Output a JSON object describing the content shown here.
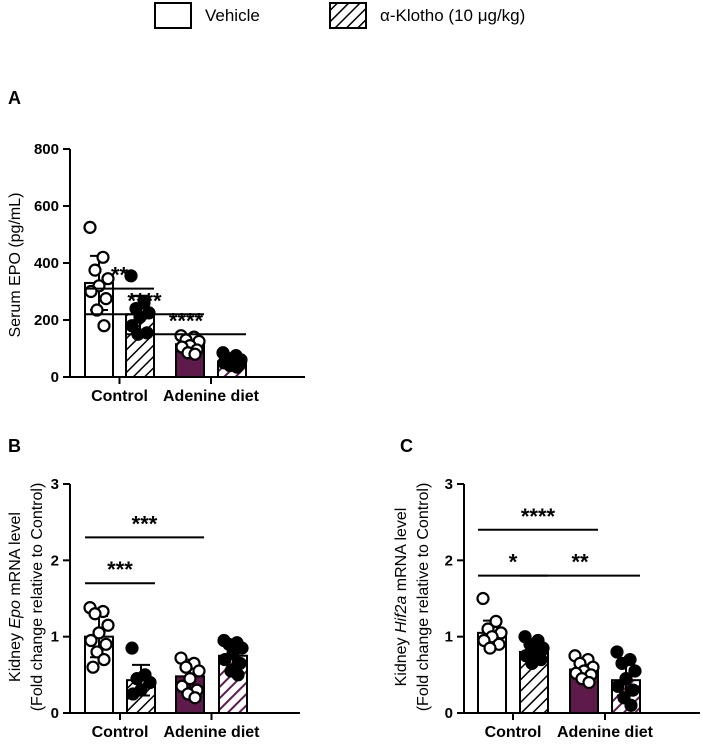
{
  "colors": {
    "adenine_fill": "#5e1a4b",
    "ink": "#000000",
    "paper": "#ffffff"
  },
  "legend": [
    {
      "label": "Vehicle",
      "pattern": "open"
    },
    {
      "label": "α-Klotho (10 μg/kg)",
      "pattern": "hatched"
    }
  ],
  "chart_data": [
    {
      "type": "bar",
      "panel": "A",
      "ylabel": "Serum EPO (pg/mL)",
      "ylim": [
        0,
        800
      ],
      "yticks": [
        0,
        200,
        400,
        600,
        800
      ],
      "yticks_labels": [
        "0",
        "200",
        "400",
        "600",
        "800"
      ],
      "groups": [
        "Control",
        "Adenine diet"
      ],
      "series": [
        {
          "name": "Vehicle",
          "values": [
            330,
            115
          ],
          "errors": [
            95,
            30
          ],
          "points_control": [
            525,
            420,
            375,
            345,
            320,
            300,
            275,
            235,
            180
          ],
          "points_adenine": [
            145,
            140,
            130,
            125,
            110,
            105,
            95,
            85,
            80
          ]
        },
        {
          "name": "α-Klotho (10 μg/kg)",
          "values": [
            220,
            55
          ],
          "errors": [
            65,
            20
          ],
          "points_control": [
            355,
            260,
            240,
            225,
            210,
            180,
            155,
            150
          ],
          "points_adenine": [
            85,
            75,
            65,
            60,
            55,
            50,
            45,
            40,
            35
          ]
        }
      ],
      "significance": [
        {
          "label": "**",
          "from": [
            0,
            0
          ],
          "to": [
            0,
            1
          ],
          "level": 310
        },
        {
          "label": "****",
          "from": [
            0,
            0
          ],
          "to": [
            1,
            0
          ],
          "level": 220
        },
        {
          "label": "****",
          "from": [
            0,
            1
          ],
          "to": [
            1,
            1
          ],
          "level": 150
        }
      ]
    },
    {
      "type": "bar",
      "panel": "B",
      "ylabel_line1": "Kidney Epo mRNA level",
      "ylabel_line2": "(Fold change relative to Control)",
      "ylim": [
        0,
        3
      ],
      "yticks": [
        0,
        1,
        2,
        3
      ],
      "yticks_labels": [
        "0",
        "1",
        "2",
        "3"
      ],
      "groups": [
        "Control",
        "Adenine diet"
      ],
      "series": [
        {
          "name": "Vehicle",
          "values": [
            1.0,
            0.48
          ],
          "errors": [
            0.27,
            0.22
          ],
          "points_control": [
            1.38,
            1.33,
            1.3,
            1.15,
            1.05,
            0.95,
            0.9,
            0.8,
            0.7,
            0.6
          ],
          "points_adenine": [
            0.72,
            0.65,
            0.6,
            0.55,
            0.45,
            0.35,
            0.3,
            0.25,
            0.2
          ]
        },
        {
          "name": "α-Klotho (10 μg/kg)",
          "values": [
            0.43,
            0.75
          ],
          "errors": [
            0.2,
            0.12
          ],
          "points_control": [
            0.85,
            0.5,
            0.45,
            0.4,
            0.3,
            0.25
          ],
          "points_adenine": [
            0.95,
            0.92,
            0.9,
            0.85,
            0.78,
            0.7,
            0.65,
            0.55,
            0.5
          ]
        }
      ],
      "significance": [
        {
          "label": "***",
          "from": [
            0,
            0
          ],
          "to": [
            0,
            1
          ],
          "level": 1.7
        },
        {
          "label": "***",
          "from": [
            0,
            0
          ],
          "to": [
            1,
            0
          ],
          "level": 2.3
        }
      ]
    },
    {
      "type": "bar",
      "panel": "C",
      "ylabel_line1": "Kidney Hif2a mRNA level",
      "ylabel_line2": "(Fold change relative to Control)",
      "ylim": [
        0,
        3
      ],
      "yticks": [
        0,
        1,
        2,
        3
      ],
      "yticks_labels": [
        "0",
        "1",
        "2",
        "3"
      ],
      "groups": [
        "Control",
        "Adenine diet"
      ],
      "series": [
        {
          "name": "Vehicle",
          "values": [
            1.05,
            0.57
          ],
          "errors": [
            0.16,
            0.1
          ],
          "points_control": [
            1.5,
            1.2,
            1.1,
            1.05,
            1.0,
            0.95,
            0.9,
            0.85
          ],
          "points_adenine": [
            0.75,
            0.7,
            0.65,
            0.6,
            0.55,
            0.52,
            0.5,
            0.45,
            0.4
          ]
        },
        {
          "name": "α-Klotho (10 μg/kg)",
          "values": [
            0.8,
            0.43
          ],
          "errors": [
            0.12,
            0.2
          ],
          "points_control": [
            1.0,
            0.95,
            0.9,
            0.85,
            0.8,
            0.75,
            0.7,
            0.65
          ],
          "points_adenine": [
            0.8,
            0.7,
            0.65,
            0.55,
            0.45,
            0.35,
            0.3,
            0.2,
            0.1
          ]
        }
      ],
      "significance": [
        {
          "label": "****",
          "from": [
            0,
            0
          ],
          "to": [
            1,
            0
          ],
          "level": 2.4
        },
        {
          "label": "*",
          "from": [
            0,
            0
          ],
          "to": [
            0,
            1
          ],
          "level": 1.8
        },
        {
          "label": "**",
          "from": [
            0,
            1
          ],
          "to": [
            1,
            1
          ],
          "level": 1.8
        }
      ]
    }
  ]
}
